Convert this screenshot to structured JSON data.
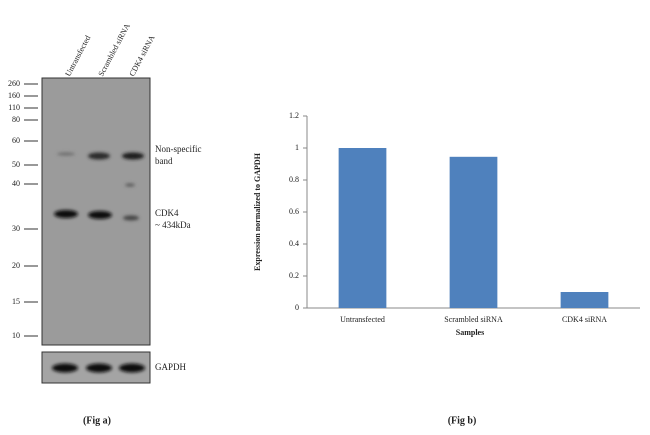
{
  "blot": {
    "lanes": [
      "Untransfected",
      "Scrambled siRNA",
      "CDK4 siRNA"
    ],
    "markers": [
      260,
      160,
      110,
      80,
      60,
      50,
      40,
      30,
      20,
      15,
      10
    ],
    "annotations": [
      "Non-specific",
      "band",
      "CDK4",
      "~  434kDa"
    ],
    "loading_control": "GAPDH",
    "caption": "(Fig a)"
  },
  "chart_data": {
    "type": "bar",
    "caption": "(Fig b)",
    "x_label": "Samples",
    "y_label": "Expression normalized to GAPDH",
    "categories": [
      "Untransfected",
      "Scrambled siRNA",
      "CDK4 siRNA"
    ],
    "values": [
      1,
      0.945,
      0.1
    ],
    "color": "#4f81bd",
    "ylim": [
      0,
      1.2
    ],
    "yticks": [
      0,
      0.2,
      0.4,
      0.6,
      0.8,
      1,
      1.2
    ]
  }
}
